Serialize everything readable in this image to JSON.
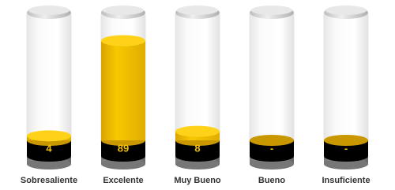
{
  "chart_data": {
    "type": "cylinder",
    "categories": [
      "Sobresaliente",
      "Excelente",
      "Muy Bueno",
      "Bueno",
      "Insuficiente"
    ],
    "values": [
      4,
      89,
      8,
      null,
      null
    ],
    "value_labels": [
      "4",
      "89",
      "8",
      "-",
      "-"
    ],
    "color": "#f5c000",
    "ylim": [
      0,
      100
    ]
  }
}
